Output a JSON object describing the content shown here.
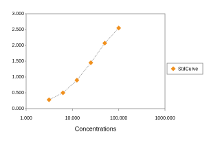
{
  "chart_data": {
    "type": "scatter",
    "x_label": "Concentrations",
    "log_x": true,
    "xlim": [
      1,
      1000
    ],
    "xticks": [
      {
        "value": 1,
        "label": "1.000"
      },
      {
        "value": 10,
        "label": "10.000"
      },
      {
        "value": 100,
        "label": "100.000"
      },
      {
        "value": 1000,
        "label": "1000.000"
      }
    ],
    "ylim": [
      0,
      3
    ],
    "yticks": [
      {
        "value": 0,
        "label": "0.000"
      },
      {
        "value": 0.5,
        "label": "0.500"
      },
      {
        "value": 1,
        "label": "1.000"
      },
      {
        "value": 1.5,
        "label": "1.500"
      },
      {
        "value": 2,
        "label": "2.000"
      },
      {
        "value": 2.5,
        "label": "2.500"
      },
      {
        "value": 3,
        "label": "3.000"
      }
    ],
    "legend": "right",
    "series": [
      {
        "name": "StdCurve",
        "color": "#f0901e",
        "line_color": "#999999",
        "x": [
          3.125,
          6.25,
          12.5,
          25,
          50,
          100
        ],
        "values": [
          0.28,
          0.5,
          0.9,
          1.45,
          2.07,
          2.55
        ]
      }
    ]
  }
}
